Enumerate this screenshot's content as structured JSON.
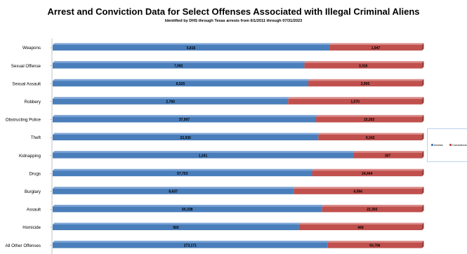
{
  "chart_data": {
    "type": "bar",
    "orientation": "horizontal",
    "stacking": "percent",
    "title": "Arrest and Conviction Data for Select Offenses Associated with Illegal Criminal Aliens",
    "subtitle": "Identified by DHS through Texas arrests from 6/1/2011 through 07/31/2023",
    "categories": [
      "Weapons",
      "Sexual Offense",
      "Sexual Assault",
      "Robbery",
      "Obstructing Police",
      "Theft",
      "Kidnapping",
      "Drugs",
      "Burglary",
      "Assault",
      "Homicide",
      "All Other Offenses"
    ],
    "value_labels": {
      "arrests": [
        "5,816",
        "7,092",
        "6,525",
        "2,760",
        "37,907",
        "23,930",
        "1,341",
        "57,703",
        "8,637",
        "60,338",
        "900",
        "273,171"
      ],
      "convictions": [
        "1,947",
        "3,316",
        "2,905",
        "1,570",
        "15,263",
        "9,343",
        "307",
        "24,444",
        "4,594",
        "22,393",
        "449",
        "93,706"
      ]
    },
    "series": [
      {
        "name": "Arrests",
        "color": "#4a7ebb",
        "values": [
          5816,
          7092,
          6525,
          2760,
          37907,
          23930,
          1341,
          57703,
          8637,
          60338,
          900,
          273171
        ]
      },
      {
        "name": "Convictions",
        "color": "#c0504d",
        "values": [
          1947,
          3316,
          2905,
          1570,
          15263,
          9343,
          307,
          24444,
          4594,
          22393,
          449,
          93706
        ]
      }
    ],
    "legend": {
      "placement": "right",
      "labels": [
        "Arrests",
        "Convictions"
      ]
    },
    "grid": false
  }
}
